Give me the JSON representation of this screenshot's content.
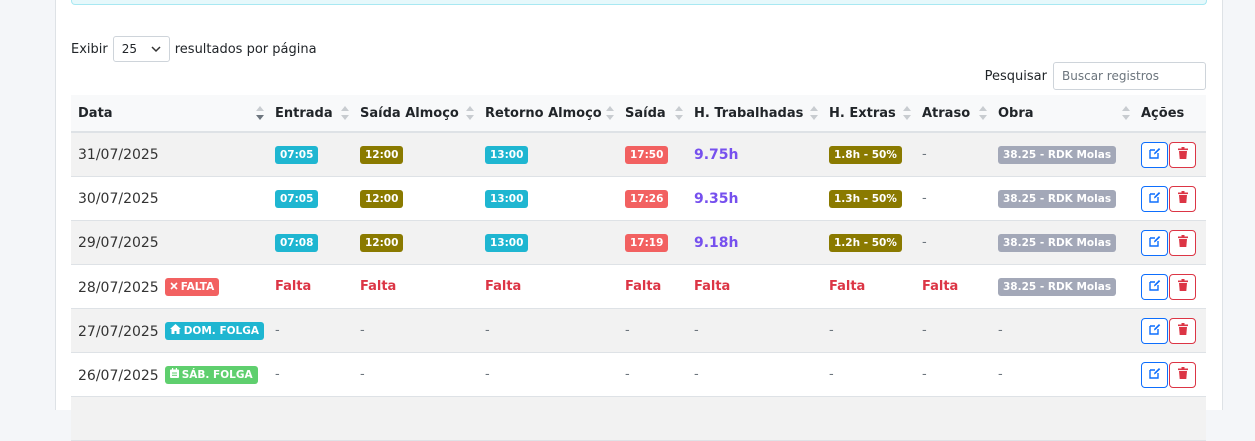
{
  "length_menu": {
    "prefix": "Exibir",
    "value": "25",
    "suffix": "resultados por página"
  },
  "search": {
    "label": "Pesquisar",
    "placeholder": "Buscar registros"
  },
  "columns": [
    "Data",
    "Entrada",
    "Saída Almoço",
    "Retorno Almoço",
    "Saída",
    "H. Trabalhadas",
    "H. Extras",
    "Atraso",
    "Obra",
    "Ações"
  ],
  "rows": [
    {
      "date": "31/07/2025",
      "tag": "",
      "entrada": "07:05",
      "saida_almoco": "12:00",
      "retorno_almoco": "13:00",
      "saida": "17:50",
      "horas": "9.75h",
      "extras": "1.8h - 50%",
      "atraso": "-",
      "obra": "38.25 - RDK Molas"
    },
    {
      "date": "30/07/2025",
      "tag": "",
      "entrada": "07:05",
      "saida_almoco": "12:00",
      "retorno_almoco": "13:00",
      "saida": "17:26",
      "horas": "9.35h",
      "extras": "1.3h - 50%",
      "atraso": "-",
      "obra": "38.25 - RDK Molas"
    },
    {
      "date": "29/07/2025",
      "tag": "",
      "entrada": "07:08",
      "saida_almoco": "12:00",
      "retorno_almoco": "13:00",
      "saida": "17:19",
      "horas": "9.18h",
      "extras": "1.2h - 50%",
      "atraso": "-",
      "obra": "38.25 - RDK Molas"
    },
    {
      "date": "28/07/2025",
      "tag": "FALTA",
      "tag_color": "#f26161",
      "cell": "Falta",
      "obra": "38.25 - RDK Molas"
    },
    {
      "date": "27/07/2025",
      "tag": "DOM. FOLGA",
      "tag_color": "#1fb6d1",
      "cell": "-",
      "obra": "-"
    },
    {
      "date": "26/07/2025",
      "tag": "SÁB. FOLGA",
      "tag_color": "#5fcf6e",
      "cell": "-",
      "obra": "-"
    }
  ],
  "icons": {
    "edit": "edit-icon",
    "delete": "trash-icon",
    "falta": "x-icon",
    "dom": "home-icon",
    "sab": "calendar-icon"
  },
  "colors": {
    "primary": "#0d6efd",
    "danger": "#dc3545",
    "hours": "#7650ee"
  }
}
